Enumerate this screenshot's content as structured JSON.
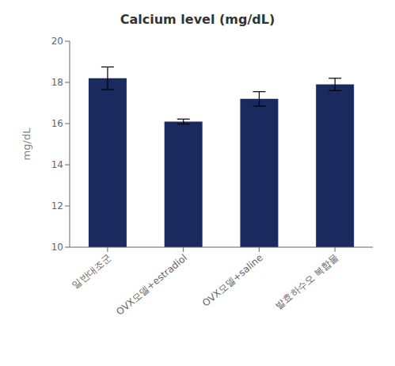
{
  "chart_data": {
    "type": "bar",
    "title": "Calcium level (mg/dL)",
    "ylabel": "mg/dL",
    "categories": [
      "일반대조군",
      "OVX모델+estradiol",
      "OVX모델+saline",
      "발효하수오 복합물"
    ],
    "values": [
      18.2,
      16.1,
      17.2,
      17.9
    ],
    "errors": [
      0.55,
      0.12,
      0.35,
      0.3
    ],
    "color": "#1a2a5e",
    "ylim": [
      10,
      20
    ],
    "yticks": [
      10,
      12,
      14,
      16,
      18,
      20
    ],
    "grid": false
  }
}
